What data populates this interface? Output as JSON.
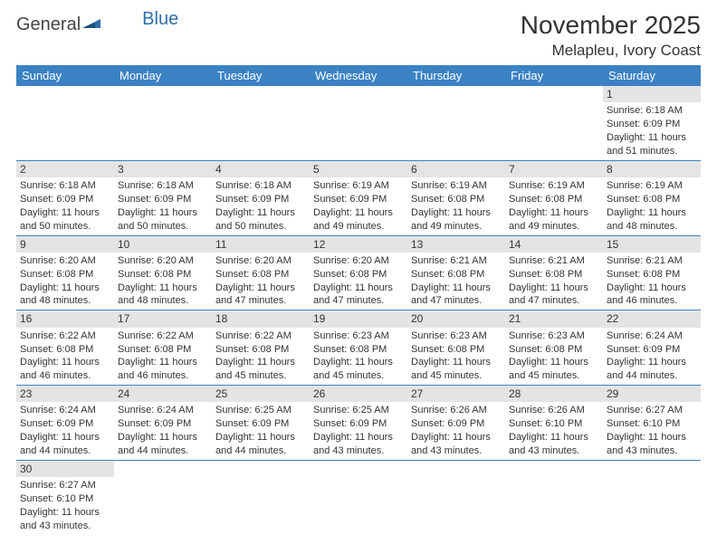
{
  "brand": {
    "part1": "General",
    "part2": "Blue"
  },
  "title": "November 2025",
  "location": "Melapleu, Ivory Coast",
  "colors": {
    "header_bg": "#3b82c4",
    "header_fg": "#ffffff",
    "daynum_bg": "#e4e4e4",
    "rule": "#3b82c4",
    "brand_blue": "#2f6ea8"
  },
  "weekdays": [
    "Sunday",
    "Monday",
    "Tuesday",
    "Wednesday",
    "Thursday",
    "Friday",
    "Saturday"
  ],
  "days": {
    "1": {
      "sunrise": "6:18 AM",
      "sunset": "6:09 PM",
      "daylight": "11 hours and 51 minutes."
    },
    "2": {
      "sunrise": "6:18 AM",
      "sunset": "6:09 PM",
      "daylight": "11 hours and 50 minutes."
    },
    "3": {
      "sunrise": "6:18 AM",
      "sunset": "6:09 PM",
      "daylight": "11 hours and 50 minutes."
    },
    "4": {
      "sunrise": "6:18 AM",
      "sunset": "6:09 PM",
      "daylight": "11 hours and 50 minutes."
    },
    "5": {
      "sunrise": "6:19 AM",
      "sunset": "6:09 PM",
      "daylight": "11 hours and 49 minutes."
    },
    "6": {
      "sunrise": "6:19 AM",
      "sunset": "6:08 PM",
      "daylight": "11 hours and 49 minutes."
    },
    "7": {
      "sunrise": "6:19 AM",
      "sunset": "6:08 PM",
      "daylight": "11 hours and 49 minutes."
    },
    "8": {
      "sunrise": "6:19 AM",
      "sunset": "6:08 PM",
      "daylight": "11 hours and 48 minutes."
    },
    "9": {
      "sunrise": "6:20 AM",
      "sunset": "6:08 PM",
      "daylight": "11 hours and 48 minutes."
    },
    "10": {
      "sunrise": "6:20 AM",
      "sunset": "6:08 PM",
      "daylight": "11 hours and 48 minutes."
    },
    "11": {
      "sunrise": "6:20 AM",
      "sunset": "6:08 PM",
      "daylight": "11 hours and 47 minutes."
    },
    "12": {
      "sunrise": "6:20 AM",
      "sunset": "6:08 PM",
      "daylight": "11 hours and 47 minutes."
    },
    "13": {
      "sunrise": "6:21 AM",
      "sunset": "6:08 PM",
      "daylight": "11 hours and 47 minutes."
    },
    "14": {
      "sunrise": "6:21 AM",
      "sunset": "6:08 PM",
      "daylight": "11 hours and 47 minutes."
    },
    "15": {
      "sunrise": "6:21 AM",
      "sunset": "6:08 PM",
      "daylight": "11 hours and 46 minutes."
    },
    "16": {
      "sunrise": "6:22 AM",
      "sunset": "6:08 PM",
      "daylight": "11 hours and 46 minutes."
    },
    "17": {
      "sunrise": "6:22 AM",
      "sunset": "6:08 PM",
      "daylight": "11 hours and 46 minutes."
    },
    "18": {
      "sunrise": "6:22 AM",
      "sunset": "6:08 PM",
      "daylight": "11 hours and 45 minutes."
    },
    "19": {
      "sunrise": "6:23 AM",
      "sunset": "6:08 PM",
      "daylight": "11 hours and 45 minutes."
    },
    "20": {
      "sunrise": "6:23 AM",
      "sunset": "6:08 PM",
      "daylight": "11 hours and 45 minutes."
    },
    "21": {
      "sunrise": "6:23 AM",
      "sunset": "6:08 PM",
      "daylight": "11 hours and 45 minutes."
    },
    "22": {
      "sunrise": "6:24 AM",
      "sunset": "6:09 PM",
      "daylight": "11 hours and 44 minutes."
    },
    "23": {
      "sunrise": "6:24 AM",
      "sunset": "6:09 PM",
      "daylight": "11 hours and 44 minutes."
    },
    "24": {
      "sunrise": "6:24 AM",
      "sunset": "6:09 PM",
      "daylight": "11 hours and 44 minutes."
    },
    "25": {
      "sunrise": "6:25 AM",
      "sunset": "6:09 PM",
      "daylight": "11 hours and 44 minutes."
    },
    "26": {
      "sunrise": "6:25 AM",
      "sunset": "6:09 PM",
      "daylight": "11 hours and 43 minutes."
    },
    "27": {
      "sunrise": "6:26 AM",
      "sunset": "6:09 PM",
      "daylight": "11 hours and 43 minutes."
    },
    "28": {
      "sunrise": "6:26 AM",
      "sunset": "6:10 PM",
      "daylight": "11 hours and 43 minutes."
    },
    "29": {
      "sunrise": "6:27 AM",
      "sunset": "6:10 PM",
      "daylight": "11 hours and 43 minutes."
    },
    "30": {
      "sunrise": "6:27 AM",
      "sunset": "6:10 PM",
      "daylight": "11 hours and 43 minutes."
    }
  },
  "labels": {
    "sunrise": "Sunrise:",
    "sunset": "Sunset:",
    "daylight": "Daylight:"
  },
  "layout": {
    "first_weekday_index": 6,
    "num_days": 30,
    "cols": 7
  }
}
